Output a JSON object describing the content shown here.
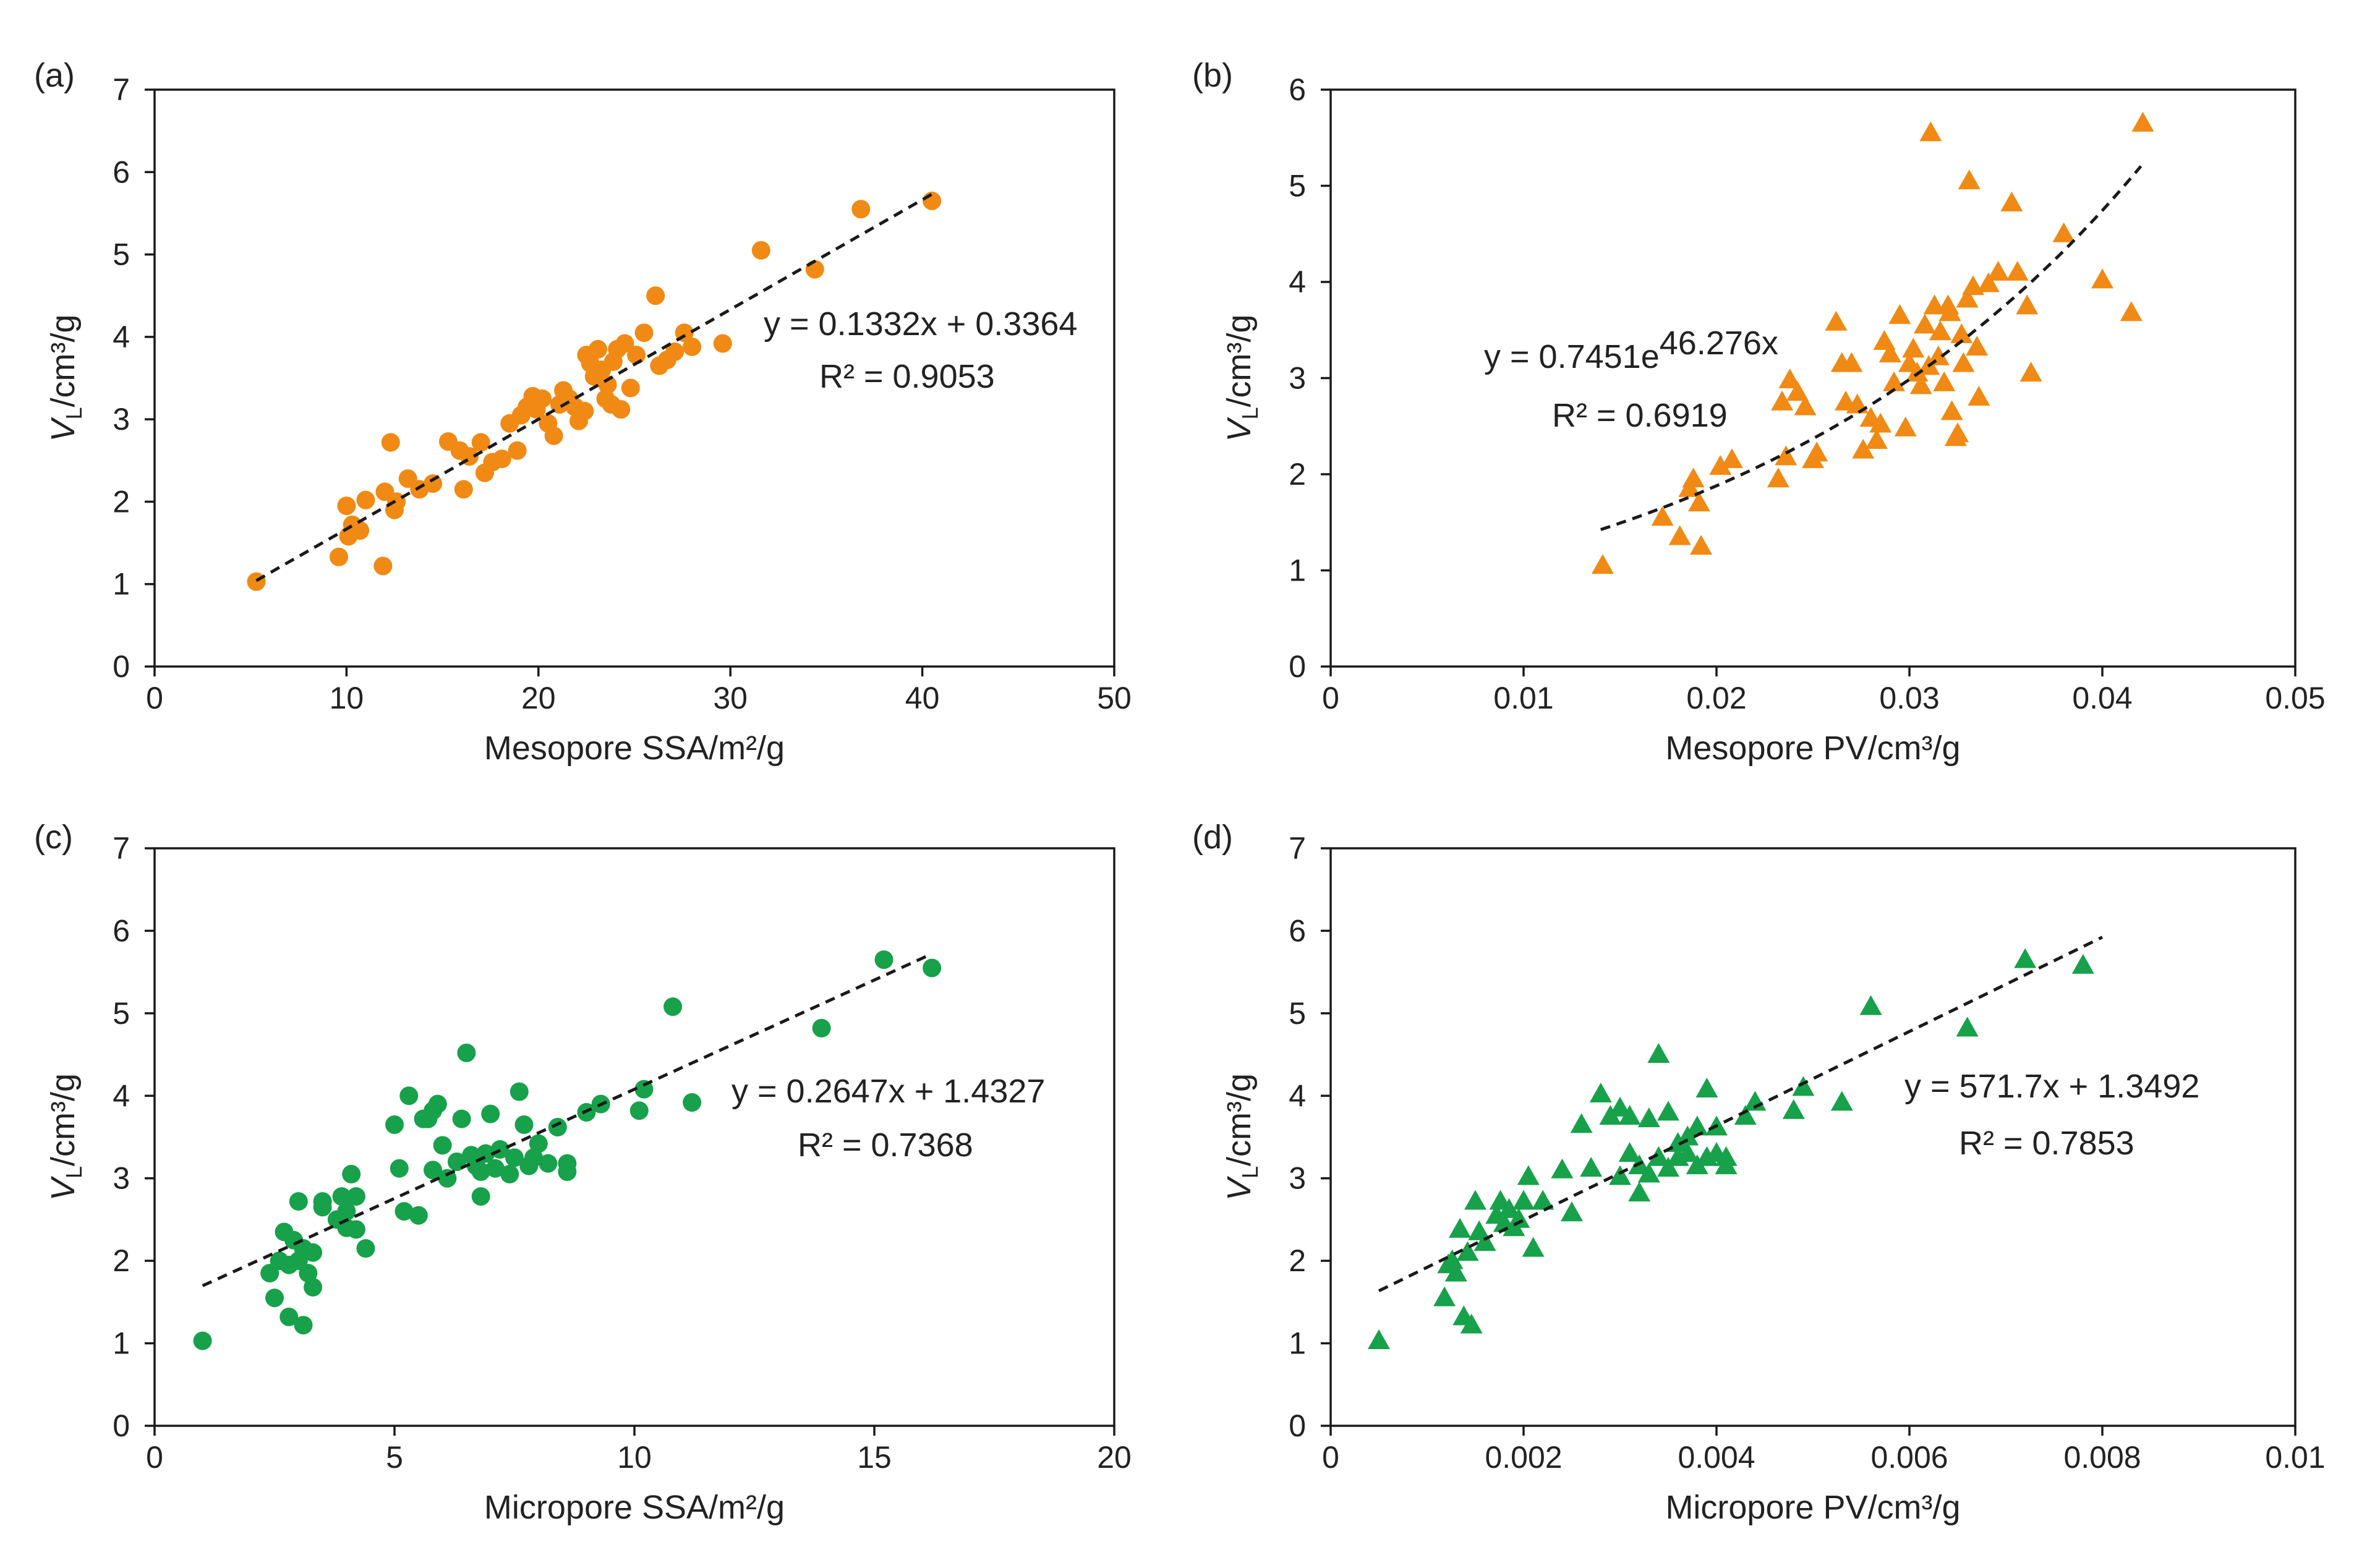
{
  "colors": {
    "orange": "#F08A14",
    "green": "#17A14A"
  },
  "chart_data": [
    {
      "type": "scatter",
      "panel": "(a)",
      "marker": "circle",
      "color": "#F08A14",
      "xlabel": "Mesopore SSA/m²/g",
      "ylabel": {
        "main": "V",
        "sub": "L",
        "unit": "/cm³/g"
      },
      "xlim": [
        0,
        50
      ],
      "ylim": [
        0,
        7
      ],
      "xticks": [
        0,
        10,
        20,
        30,
        40,
        50
      ],
      "xtick_labels": [
        "0",
        "10",
        "20",
        "30",
        "40",
        "50"
      ],
      "yticks": [
        0,
        1,
        2,
        3,
        4,
        5,
        6,
        7
      ],
      "ytick_labels": [
        "0",
        "1",
        "2",
        "3",
        "4",
        "5",
        "6",
        "7"
      ],
      "fit": {
        "kind": "linear",
        "a": 0.1332,
        "b": 0.3364,
        "x_range": [
          5.3,
          40.5
        ]
      },
      "equation": {
        "prefix": "y = 0.1332x + 0.3364"
      },
      "r2": "R² = 0.9053",
      "x": [
        5.3,
        9.6,
        10.0,
        10.1,
        10.3,
        10.7,
        11.0,
        11.9,
        12.0,
        12.3,
        12.5,
        12.6,
        13.2,
        13.8,
        14.5,
        15.3,
        15.9,
        16.1,
        16.4,
        17.0,
        17.2,
        17.6,
        18.1,
        18.5,
        18.9,
        19.1,
        19.4,
        19.7,
        19.9,
        20.2,
        20.5,
        20.8,
        21.1,
        21.3,
        21.6,
        21.9,
        22.1,
        22.4,
        22.5,
        22.7,
        22.9,
        23.1,
        23.3,
        23.5,
        23.6,
        23.8,
        23.9,
        24.1,
        24.3,
        24.5,
        24.8,
        25.1,
        25.5,
        26.1,
        26.3,
        26.7,
        27.1,
        27.6,
        28.0,
        29.6,
        31.6,
        34.4,
        36.8,
        40.5
      ],
      "y": [
        1.03,
        1.33,
        1.95,
        1.58,
        1.72,
        1.65,
        2.02,
        1.22,
        2.12,
        2.72,
        1.9,
        2.0,
        2.28,
        2.15,
        2.22,
        2.73,
        2.62,
        2.15,
        2.55,
        2.72,
        2.35,
        2.48,
        2.52,
        2.95,
        2.62,
        3.05,
        3.15,
        3.28,
        3.12,
        3.25,
        2.95,
        2.8,
        3.18,
        3.35,
        3.25,
        3.15,
        2.98,
        3.1,
        3.78,
        3.68,
        3.52,
        3.85,
        3.6,
        3.25,
        3.42,
        3.18,
        3.7,
        3.85,
        3.12,
        3.92,
        3.38,
        3.78,
        4.05,
        4.5,
        3.65,
        3.72,
        3.82,
        4.05,
        3.88,
        3.92,
        5.05,
        4.82,
        5.55,
        5.65
      ]
    },
    {
      "type": "scatter",
      "panel": "(b)",
      "marker": "triangle",
      "color": "#F08A14",
      "xlabel": "Mesopore PV/cm³/g",
      "ylabel": {
        "main": "V",
        "sub": "L",
        "unit": "/cm³/g"
      },
      "xlim": [
        0,
        0.05
      ],
      "ylim": [
        0,
        6
      ],
      "xticks": [
        0,
        0.01,
        0.02,
        0.03,
        0.04,
        0.05
      ],
      "xtick_labels": [
        "0",
        "0.01",
        "0.02",
        "0.03",
        "0.04",
        "0.05"
      ],
      "yticks": [
        0,
        1,
        2,
        3,
        4,
        5,
        6
      ],
      "ytick_labels": [
        "0",
        "1",
        "2",
        "3",
        "4",
        "5",
        "6"
      ],
      "fit": {
        "kind": "exponential",
        "a": 0.7451,
        "b": 46.276,
        "x_range": [
          0.014,
          0.042
        ]
      },
      "equation": {
        "prefix": "y = 0.7451e",
        "superscript": "46.276x"
      },
      "r2": "R² = 0.6919",
      "x": [
        0.0141,
        0.0172,
        0.0181,
        0.0186,
        0.0188,
        0.0191,
        0.0192,
        0.0202,
        0.0208,
        0.0232,
        0.0234,
        0.0236,
        0.0238,
        0.0242,
        0.0246,
        0.025,
        0.0252,
        0.0262,
        0.0265,
        0.0267,
        0.027,
        0.0273,
        0.0276,
        0.028,
        0.0283,
        0.0285,
        0.0287,
        0.029,
        0.0292,
        0.0295,
        0.0298,
        0.03,
        0.0302,
        0.0304,
        0.0306,
        0.0308,
        0.031,
        0.0311,
        0.0313,
        0.0315,
        0.0316,
        0.0318,
        0.032,
        0.0321,
        0.0322,
        0.0324,
        0.0325,
        0.0327,
        0.0328,
        0.033,
        0.0331,
        0.0333,
        0.0335,
        0.0336,
        0.0341,
        0.0346,
        0.0353,
        0.0356,
        0.0361,
        0.0363,
        0.038,
        0.04,
        0.0415,
        0.0421
      ],
      "y": [
        1.05,
        1.55,
        1.35,
        1.85,
        1.95,
        1.7,
        1.25,
        2.08,
        2.15,
        1.95,
        2.75,
        2.18,
        2.98,
        2.85,
        2.7,
        2.15,
        2.22,
        3.58,
        3.15,
        2.75,
        3.15,
        2.72,
        2.25,
        2.58,
        2.35,
        2.52,
        3.38,
        3.25,
        2.95,
        3.65,
        2.48,
        3.15,
        3.3,
        3.05,
        2.92,
        3.55,
        3.12,
        5.55,
        3.75,
        3.22,
        3.48,
        2.95,
        3.75,
        3.68,
        2.65,
        2.38,
        2.42,
        3.45,
        3.15,
        3.82,
        5.05,
        3.95,
        3.32,
        2.8,
        3.98,
        4.1,
        4.82,
        4.1,
        3.75,
        3.05,
        4.5,
        4.02,
        3.68,
        5.65
      ]
    },
    {
      "type": "scatter",
      "panel": "(c)",
      "marker": "circle",
      "color": "#17A14A",
      "xlabel": "Micropore SSA/m²/g",
      "ylabel": {
        "main": "V",
        "sub": "L",
        "unit": "/cm³/g"
      },
      "xlim": [
        0,
        20
      ],
      "ylim": [
        0,
        7
      ],
      "xticks": [
        0,
        5,
        10,
        15,
        20
      ],
      "xtick_labels": [
        "0",
        "5",
        "10",
        "15",
        "20"
      ],
      "yticks": [
        0,
        1,
        2,
        3,
        4,
        5,
        6,
        7
      ],
      "ytick_labels": [
        "0",
        "1",
        "2",
        "3",
        "4",
        "5",
        "6",
        "7"
      ],
      "fit": {
        "kind": "linear",
        "a": 0.2647,
        "b": 1.4327,
        "x_range": [
          1.0,
          16.2
        ]
      },
      "equation": {
        "prefix": "y = 0.2647x + 1.4327"
      },
      "r2": "R² = 0.7368",
      "x": [
        1.0,
        2.4,
        2.5,
        2.6,
        2.7,
        2.8,
        2.8,
        2.9,
        3.0,
        3.0,
        3.1,
        3.1,
        3.2,
        3.3,
        3.3,
        3.5,
        3.5,
        3.8,
        3.9,
        4.0,
        4.0,
        4.1,
        4.2,
        4.2,
        4.4,
        5.0,
        5.1,
        5.2,
        5.3,
        5.5,
        5.6,
        5.7,
        5.8,
        5.8,
        5.9,
        6.0,
        6.1,
        6.3,
        6.4,
        6.5,
        6.6,
        6.7,
        6.8,
        6.8,
        6.9,
        7.0,
        7.1,
        7.2,
        7.4,
        7.5,
        7.6,
        7.7,
        7.8,
        7.9,
        8.0,
        8.2,
        8.4,
        8.6,
        8.6,
        9.0,
        9.3,
        10.1,
        10.2,
        10.8,
        11.2,
        13.9,
        15.2,
        16.2
      ],
      "y": [
        1.03,
        1.85,
        1.55,
        2.0,
        2.35,
        1.32,
        1.95,
        2.25,
        2.72,
        2.0,
        2.15,
        1.22,
        1.85,
        2.1,
        1.68,
        2.72,
        2.65,
        2.5,
        2.78,
        2.4,
        2.6,
        3.05,
        2.78,
        2.38,
        2.15,
        3.65,
        3.12,
        2.6,
        4.0,
        2.55,
        3.72,
        3.72,
        3.1,
        3.82,
        3.9,
        3.4,
        3.0,
        3.2,
        3.72,
        4.52,
        3.28,
        3.15,
        3.08,
        2.78,
        3.3,
        3.78,
        3.12,
        3.35,
        3.05,
        3.25,
        4.05,
        3.65,
        3.15,
        3.25,
        3.42,
        3.18,
        3.62,
        3.18,
        3.08,
        3.8,
        3.9,
        3.82,
        4.08,
        5.08,
        3.92,
        4.82,
        5.65,
        5.55
      ]
    },
    {
      "type": "scatter",
      "panel": "(d)",
      "marker": "triangle",
      "color": "#17A14A",
      "xlabel": "Micropore PV/cm³/g",
      "ylabel": {
        "main": "V",
        "sub": "L",
        "unit": "/cm³/g"
      },
      "xlim": [
        0,
        0.01
      ],
      "ylim": [
        0,
        7
      ],
      "xticks": [
        0,
        0.002,
        0.004,
        0.006,
        0.008,
        0.01
      ],
      "xtick_labels": [
        "0",
        "0.002",
        "0.004",
        "0.006",
        "0.008",
        "0.01"
      ],
      "yticks": [
        0,
        1,
        2,
        3,
        4,
        5,
        6,
        7
      ],
      "ytick_labels": [
        "0",
        "1",
        "2",
        "3",
        "4",
        "5",
        "6",
        "7"
      ],
      "fit": {
        "kind": "linear",
        "a": 571.7,
        "b": 1.3492,
        "x_range": [
          0.0005,
          0.008
        ]
      },
      "equation": {
        "prefix": "y = 571.7x + 1.3492"
      },
      "r2": "R² = 0.7853",
      "x": [
        0.0005,
        0.00118,
        0.00122,
        0.00126,
        0.0013,
        0.00134,
        0.00138,
        0.00142,
        0.00146,
        0.0015,
        0.00154,
        0.0016,
        0.00172,
        0.00176,
        0.0018,
        0.00185,
        0.0019,
        0.00195,
        0.002,
        0.00205,
        0.0021,
        0.0022,
        0.0024,
        0.0025,
        0.0026,
        0.0027,
        0.0028,
        0.0029,
        0.003,
        0.003,
        0.0031,
        0.0031,
        0.0032,
        0.0032,
        0.0033,
        0.0033,
        0.0034,
        0.0034,
        0.0035,
        0.0035,
        0.0036,
        0.0036,
        0.0037,
        0.0037,
        0.0038,
        0.0038,
        0.0039,
        0.0039,
        0.004,
        0.004,
        0.0041,
        0.0041,
        0.0043,
        0.0044,
        0.0048,
        0.0049,
        0.0053,
        0.0056,
        0.0066,
        0.0072,
        0.0078
      ],
      "y": [
        1.03,
        1.55,
        1.95,
        2.0,
        1.85,
        2.38,
        1.32,
        2.1,
        1.22,
        2.72,
        2.35,
        2.22,
        2.55,
        2.72,
        2.45,
        2.62,
        2.4,
        2.5,
        2.72,
        3.02,
        2.15,
        2.72,
        3.1,
        2.58,
        3.65,
        3.12,
        4.02,
        3.75,
        3.85,
        3.02,
        3.75,
        3.3,
        2.82,
        3.15,
        3.72,
        3.05,
        4.5,
        3.25,
        3.12,
        3.8,
        3.25,
        3.42,
        3.3,
        3.5,
        3.15,
        3.62,
        3.25,
        4.08,
        3.3,
        3.62,
        3.15,
        3.25,
        3.75,
        3.92,
        3.82,
        4.1,
        3.92,
        5.08,
        4.82,
        5.65,
        5.58
      ]
    }
  ]
}
